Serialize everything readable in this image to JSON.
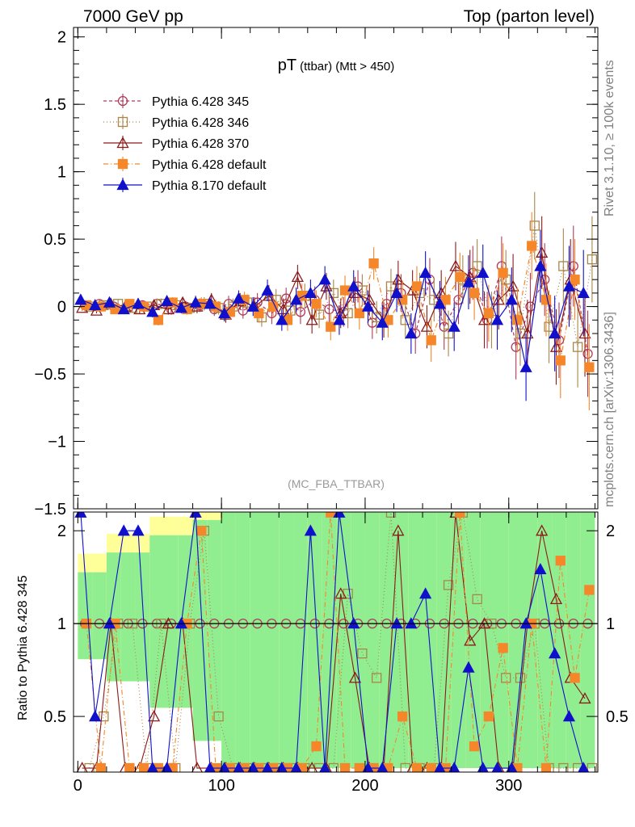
{
  "header": {
    "left": "7000 GeV pp",
    "right": "Top (parton level)"
  },
  "side": {
    "rivet": "Rivet 3.1.10, ≥ 100k events",
    "mcplots": "mcplots.cern.ch [arXiv:1306.3436]"
  },
  "ratio_ylabel": "Ratio to Pythia 6.428 345",
  "colors": {
    "band_green": "#90ee90",
    "band_yellow": "#ffff99",
    "p345": "#b03a5b",
    "p346": "#a8864a",
    "p370": "#8b1a1a",
    "p6def": "#f5872a",
    "p8def": "#1010cc"
  },
  "chart_data": {
    "type": "scatter",
    "title_main": "pT",
    "title_sub": "(ttbar) (Mtt > 450)",
    "analysis": "(MC_FBA_TTBAR)",
    "xlim": [
      -3,
      362
    ],
    "ylim": [
      -1.5,
      2.07
    ],
    "yticks": [
      -1.5,
      -1,
      -0.5,
      0,
      0.5,
      1,
      1.5,
      2
    ],
    "ytick_labels": [
      "−1.5",
      "−1",
      "−0.5",
      "0",
      "0.5",
      "1",
      "1.5",
      "2"
    ],
    "xticks": [
      0,
      100,
      200,
      300
    ],
    "xtick_labels": [
      "0",
      "100",
      "200",
      "300"
    ],
    "ratio_ylim": [
      0.33,
      2.3
    ],
    "ratio_yticks": [
      0.5,
      1,
      2
    ],
    "ratio_ytick_labels": [
      "0.5",
      "1",
      "2"
    ],
    "legend": [
      "Pythia 6.428 345",
      "Pythia 6.428 346",
      "Pythia 6.428 370",
      "Pythia 6.428 default",
      "Pythia 8.170 default"
    ],
    "series": [
      {
        "name": "Pythia 6.428 345",
        "marker": "circle-open",
        "x": [
          5,
          15,
          25,
          35,
          45,
          55,
          65,
          75,
          85,
          95,
          105,
          115,
          125,
          135,
          145,
          155,
          165,
          175,
          185,
          195,
          205,
          215,
          225,
          235,
          245,
          255,
          265,
          275,
          285,
          295,
          305,
          315,
          325,
          335,
          345,
          355
        ],
        "y": [
          0.01,
          0.02,
          0.0,
          -0.01,
          0.01,
          0.02,
          -0.02,
          0.0,
          0.01,
          -0.02,
          0.02,
          -0.03,
          0.03,
          -0.05,
          0.06,
          -0.04,
          0.05,
          -0.02,
          -0.04,
          0.15,
          -0.12,
          0.02,
          0.1,
          -0.2,
          0.2,
          -0.15,
          0.05,
          0.25,
          -0.1,
          0.3,
          -0.3,
          0.0,
          0.2,
          -0.25,
          0.3,
          -0.35
        ],
        "err": [
          0.02,
          0.02,
          0.03,
          0.03,
          0.03,
          0.04,
          0.04,
          0.04,
          0.05,
          0.05,
          0.06,
          0.06,
          0.07,
          0.08,
          0.08,
          0.09,
          0.1,
          0.1,
          0.11,
          0.12,
          0.12,
          0.13,
          0.14,
          0.15,
          0.16,
          0.17,
          0.18,
          0.2,
          0.21,
          0.22,
          0.24,
          0.25,
          0.27,
          0.28,
          0.3,
          0.32
        ]
      },
      {
        "name": "Pythia 6.428 346",
        "marker": "square-open",
        "x": [
          8,
          18,
          28,
          38,
          48,
          58,
          68,
          78,
          88,
          98,
          108,
          118,
          128,
          138,
          148,
          158,
          168,
          178,
          188,
          198,
          208,
          218,
          228,
          238,
          248,
          258,
          268,
          278,
          288,
          298,
          308,
          318,
          328,
          338,
          348,
          358
        ],
        "y": [
          0.0,
          0.01,
          0.02,
          -0.01,
          0.0,
          0.02,
          0.01,
          -0.01,
          0.02,
          -0.01,
          0.0,
          0.03,
          -0.08,
          0.05,
          -0.03,
          0.08,
          -0.06,
          0.1,
          -0.05,
          0.12,
          -0.08,
          0.15,
          -0.1,
          0.1,
          0.05,
          -0.2,
          0.2,
          0.3,
          -0.1,
          0.2,
          -0.2,
          0.6,
          -0.15,
          0.3,
          -0.3,
          0.35
        ],
        "err": [
          0.02,
          0.02,
          0.03,
          0.03,
          0.03,
          0.04,
          0.04,
          0.04,
          0.05,
          0.05,
          0.06,
          0.06,
          0.07,
          0.08,
          0.08,
          0.09,
          0.1,
          0.1,
          0.11,
          0.12,
          0.12,
          0.13,
          0.14,
          0.15,
          0.16,
          0.17,
          0.18,
          0.2,
          0.21,
          0.22,
          0.24,
          0.25,
          0.27,
          0.28,
          0.3,
          0.32
        ]
      },
      {
        "name": "Pythia 6.428 370",
        "marker": "triangle-open",
        "x": [
          3,
          13,
          23,
          33,
          43,
          53,
          63,
          73,
          83,
          93,
          103,
          113,
          123,
          133,
          143,
          153,
          163,
          173,
          183,
          193,
          203,
          213,
          223,
          233,
          243,
          253,
          263,
          273,
          283,
          293,
          303,
          313,
          323,
          333,
          343,
          353
        ],
        "y": [
          -0.01,
          -0.03,
          0.02,
          0.0,
          -0.02,
          0.01,
          -0.02,
          0.03,
          0.0,
          0.05,
          -0.06,
          0.04,
          0.0,
          0.08,
          -0.02,
          0.22,
          -0.1,
          0.15,
          -0.05,
          0.1,
          0.05,
          -0.1,
          0.2,
          0.12,
          -0.15,
          0.1,
          0.3,
          0.22,
          -0.1,
          0.05,
          0.15,
          -0.2,
          0.4,
          -0.3,
          0.2,
          -0.2
        ],
        "err": [
          0.02,
          0.02,
          0.03,
          0.03,
          0.03,
          0.04,
          0.04,
          0.04,
          0.05,
          0.05,
          0.06,
          0.06,
          0.07,
          0.08,
          0.08,
          0.09,
          0.1,
          0.1,
          0.11,
          0.12,
          0.12,
          0.13,
          0.14,
          0.15,
          0.16,
          0.17,
          0.18,
          0.2,
          0.21,
          0.22,
          0.24,
          0.25,
          0.27,
          0.28,
          0.3,
          0.32
        ]
      },
      {
        "name": "Pythia 6.428 default",
        "marker": "square-filled",
        "x": [
          6,
          16,
          26,
          36,
          46,
          56,
          66,
          76,
          86,
          96,
          106,
          116,
          126,
          136,
          146,
          156,
          166,
          176,
          186,
          196,
          206,
          216,
          226,
          236,
          246,
          256,
          266,
          276,
          286,
          296,
          306,
          316,
          326,
          336,
          346,
          356
        ],
        "y": [
          0.01,
          0.0,
          -0.02,
          0.02,
          0.0,
          -0.1,
          0.03,
          -0.02,
          0.02,
          0.0,
          -0.04,
          0.05,
          -0.05,
          0.0,
          -0.1,
          0.08,
          0.02,
          -0.15,
          0.12,
          -0.05,
          0.32,
          -0.1,
          0.05,
          0.15,
          -0.25,
          0.05,
          0.22,
          0.1,
          -0.05,
          0.25,
          -0.1,
          0.45,
          0.05,
          -0.4,
          0.2,
          -0.45
        ],
        "err": [
          0.02,
          0.02,
          0.03,
          0.03,
          0.03,
          0.04,
          0.04,
          0.04,
          0.05,
          0.05,
          0.06,
          0.06,
          0.07,
          0.08,
          0.08,
          0.09,
          0.1,
          0.1,
          0.11,
          0.12,
          0.12,
          0.13,
          0.14,
          0.15,
          0.16,
          0.17,
          0.18,
          0.2,
          0.21,
          0.22,
          0.24,
          0.25,
          0.27,
          0.28,
          0.3,
          0.32
        ]
      },
      {
        "name": "Pythia 8.170 default",
        "marker": "triangle-filled",
        "x": [
          2,
          12,
          22,
          32,
          42,
          52,
          62,
          72,
          82,
          92,
          102,
          112,
          122,
          132,
          142,
          152,
          162,
          172,
          182,
          192,
          202,
          212,
          222,
          232,
          242,
          252,
          262,
          272,
          282,
          292,
          302,
          312,
          322,
          332,
          342,
          352
        ],
        "y": [
          0.05,
          0.01,
          0.03,
          -0.02,
          0.02,
          -0.04,
          0.04,
          -0.01,
          0.03,
          0.02,
          -0.05,
          0.06,
          0.0,
          0.12,
          -0.1,
          0.05,
          0.1,
          0.2,
          -0.1,
          0.15,
          0.0,
          -0.12,
          0.1,
          -0.2,
          0.25,
          0.02,
          -0.15,
          0.18,
          0.25,
          -0.1,
          0.05,
          -0.45,
          0.3,
          -0.2,
          0.15,
          0.1
        ],
        "err": [
          0.02,
          0.02,
          0.03,
          0.03,
          0.03,
          0.04,
          0.04,
          0.04,
          0.05,
          0.05,
          0.06,
          0.06,
          0.07,
          0.08,
          0.08,
          0.09,
          0.1,
          0.1,
          0.11,
          0.12,
          0.12,
          0.13,
          0.14,
          0.15,
          0.16,
          0.17,
          0.18,
          0.2,
          0.21,
          0.22,
          0.24,
          0.25,
          0.27,
          0.28,
          0.3,
          0.32
        ]
      }
    ]
  }
}
